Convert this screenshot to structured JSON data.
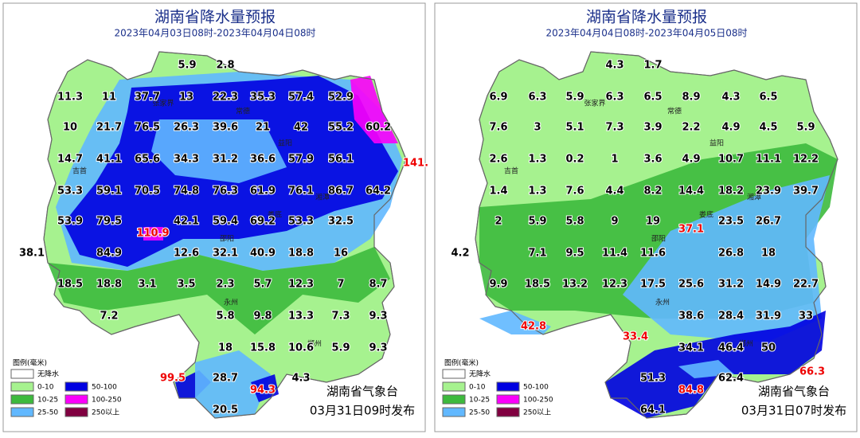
{
  "panels": [
    {
      "title": "湖南省降水量预报",
      "subtitle": "2023年04月03日08时-2023年04月04日08时",
      "values": [
        "5.9",
        "2.8",
        "11.3",
        "11",
        "37.7",
        "13",
        "22.3",
        "35.3",
        "57.4",
        "52.9",
        "10",
        "21.7",
        "76.5",
        "26.3",
        "39.6",
        "21",
        "42",
        "55.2",
        "60.2",
        "14.7",
        "41.1",
        "65.6",
        "34.3",
        "31.2",
        "36.6",
        "57.9",
        "56.1",
        "141.",
        "53.3",
        "59.1",
        "70.5",
        "74.8",
        "76.3",
        "61.9",
        "76.1",
        "86.7",
        "64.2",
        "53.9",
        "79.5",
        "42.1",
        "59.4",
        "69.2",
        "53.3",
        "32.5",
        "110.9",
        "38.1",
        "84.9",
        "12.6",
        "32.1",
        "40.9",
        "18.8",
        "16",
        "18.5",
        "18.8",
        "3.1",
        "3.5",
        "2.3",
        "5.7",
        "12.3",
        "7",
        "8.7",
        "7.2",
        "5.8",
        "9.8",
        "13.3",
        "7.3",
        "9.3",
        "18",
        "15.8",
        "10.6",
        "5.9",
        "9.3",
        "99.5",
        "28.7",
        "94.3",
        "4.3",
        "20.5"
      ],
      "cities": [
        "张家界",
        "常德",
        "益阳",
        "吉首",
        "湘潭",
        "娄底",
        "邵阳",
        "永州",
        "郴州"
      ],
      "publisher": "湖南省气象台",
      "issued": "03月31日09时发布"
    },
    {
      "title": "湖南省降水量预报",
      "subtitle": "2023年04月04日08时-2023年04月05日08时",
      "values": [
        "4.3",
        "1.7",
        "6.9",
        "6.3",
        "5.9",
        "6.3",
        "6.5",
        "8.9",
        "4.3",
        "6.5",
        "7.6",
        "3",
        "5.1",
        "7.3",
        "3.9",
        "2.2",
        "4.9",
        "4.5",
        "5.9",
        "2.6",
        "1.3",
        "0.2",
        "1",
        "3.6",
        "4.9",
        "10.7",
        "11.1",
        "12.2",
        "1.4",
        "1.3",
        "7.6",
        "4.4",
        "8.2",
        "14.4",
        "18.2",
        "23.9",
        "39.7",
        "2",
        "5.9",
        "5.8",
        "9",
        "19",
        "37.1",
        "23.5",
        "26.7",
        "4.2",
        "7.1",
        "9.5",
        "11.4",
        "11.6",
        "26.8",
        "18",
        "9.9",
        "18.5",
        "13.2",
        "12.3",
        "17.5",
        "25.6",
        "31.2",
        "14.9",
        "22.7",
        "42.8",
        "38.6",
        "28.4",
        "31.9",
        "33",
        "33.4",
        "34.1",
        "46.4",
        "50",
        "51.3",
        "84.8",
        "62.4",
        "66.3",
        "64.1"
      ],
      "cities": [
        "张家界",
        "常德",
        "益阳",
        "吉首",
        "湘潭",
        "娄底",
        "邵阳",
        "永州",
        "郴州"
      ],
      "publisher": "湖南省气象台",
      "issued": "03月31日07时发布"
    }
  ],
  "legend": {
    "title": "图例(毫米)",
    "items": [
      {
        "label": "无降水",
        "color": "#ffffff"
      },
      {
        "label": "0-10",
        "color": "#a6f28f"
      },
      {
        "label": "10-25",
        "color": "#3dba3d"
      },
      {
        "label": "25-50",
        "color": "#61b8ff"
      },
      {
        "label": "50-100",
        "color": "#0000e1"
      },
      {
        "label": "100-250",
        "color": "#fa00fa"
      },
      {
        "label": "250以上",
        "color": "#800040"
      }
    ]
  }
}
